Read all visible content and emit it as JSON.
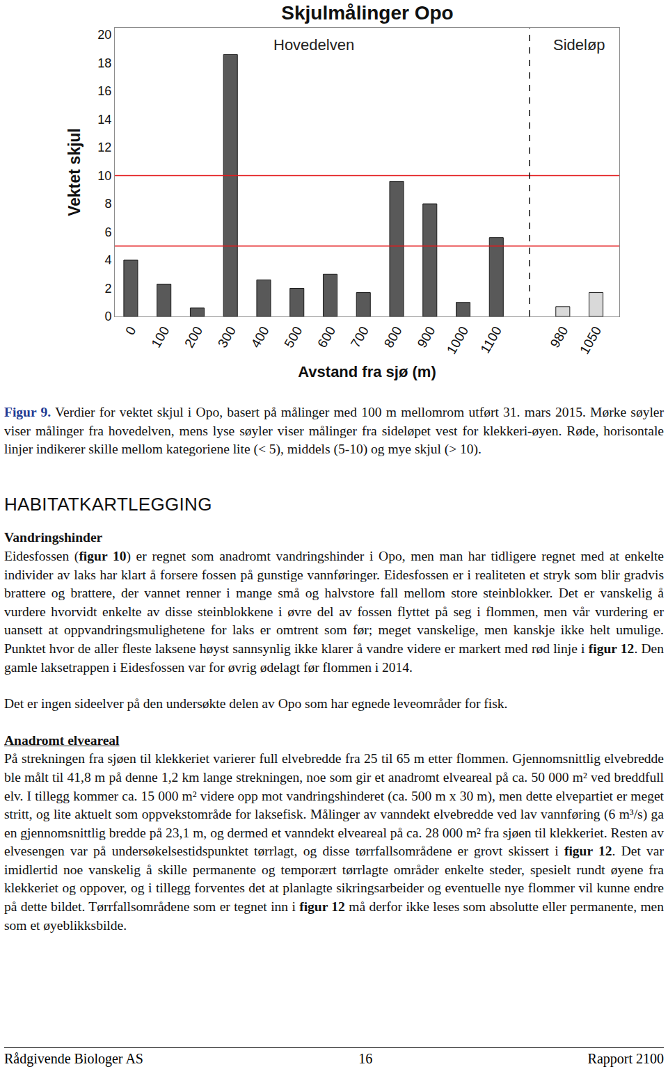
{
  "chart_data": {
    "type": "bar",
    "title": "Skjulmålinger Opo",
    "x_label": "Avstand fra sjø (m)",
    "y_label": "Vektet skjul",
    "categories": [
      "0",
      "100",
      "200",
      "300",
      "400",
      "500",
      "600",
      "700",
      "800",
      "900",
      "1000",
      "1100",
      null,
      "980",
      "1050"
    ],
    "values": [
      4.0,
      2.3,
      0.6,
      18.6,
      2.6,
      2.0,
      3.0,
      1.7,
      9.6,
      8.0,
      1.0,
      5.6,
      null,
      0.7,
      1.7
    ],
    "colors": [
      "#595959",
      "#595959",
      "#595959",
      "#595959",
      "#595959",
      "#595959",
      "#595959",
      "#595959",
      "#595959",
      "#595959",
      "#595959",
      "#595959",
      null,
      "#d9d9d9",
      "#d9d9d9"
    ],
    "ylim": [
      0,
      20.5
    ],
    "yticks": [
      0,
      2,
      4,
      6,
      8,
      10,
      12,
      14,
      16,
      18,
      20
    ],
    "grid": false,
    "thresholds": [
      5,
      10
    ],
    "section_labels": [
      "Hovedelven",
      "Sideløp"
    ]
  },
  "document": {
    "caption": {
      "label": "Figur 9.",
      "text": " Verdier for vektet skjul i Opo, basert på målinger med 100 m mellomrom utført 31. mars 2015. Mørke søyler viser målinger fra hovedelven, mens lyse søyler viser målinger fra sideløpet vest for klekkeri-øyen. Røde, horisontale linjer indikerer skille mellom kategoriene lite (< 5), middels (5-10) og mye skjul (> 10)."
    },
    "heading": "HABITATKARTLEGGING",
    "sections": [
      {
        "title": "Vandringshinder",
        "underline": false,
        "paragraphs": [
          [
            {
              "text": "Eidesfossen ("
            },
            {
              "text": "figur 10",
              "bold": true
            },
            {
              "text": ") er regnet som anadromt vandringshinder i Opo, men man har tidligere regnet med at enkelte individer av laks har klart å forsere fossen på gunstige vannføringer. Eidesfossen er i realiteten et stryk som blir gradvis brattere og brattere, der vannet renner i mange små og halvstore fall mellom store steinblokker. Det er vanskelig å vurdere hvorvidt enkelte av disse steinblokkene i øvre del av fossen flyttet på seg i flommen, men vår vurdering er uansett at oppvandringsmulighetene for laks er omtrent som før; meget vanskelige, men kanskje ikke helt umulige. Punktet hvor de aller fleste laksene høyst sannsynlig ikke klarer å vandre videre er markert med rød linje i "
            },
            {
              "text": "figur 12",
              "bold": true
            },
            {
              "text": ". Den gamle laksetrappen i Eidesfossen var for øvrig ødelagt før flommen i 2014."
            }
          ],
          [
            {
              "text": "Det er ingen sideelver på den undersøkte delen av Opo som har egnede leveområder for fisk."
            }
          ]
        ]
      },
      {
        "title": "Anadromt elveareal",
        "underline": true,
        "paragraphs": [
          [
            {
              "text": "På strekningen fra sjøen til klekkeriet varierer full elvebredde fra 25 til 65 m etter flommen. Gjennomsnittlig elvebredde ble målt til 41,8 m på denne 1,2 km lange strekningen, noe som gir et anadromt elveareal på ca. 50 000 m² ved breddfull elv. I tillegg kommer ca. 15 000 m² videre opp mot vandringshinderet (ca. 500 m x 30 m), men dette elvepartiet er meget stritt, og lite aktuelt som oppvekstområde for laksefisk. Målinger av vanndekt elvebredde ved lav vannføring (6 m³/s) ga en gjennomsnittlig bredde på 23,1 m, og dermed et vanndekt elveareal på ca. 28 000 m² fra sjøen til klekkeriet. Resten av elvesengen var på undersøkelsestidspunktet tørrlagt, og disse tørrfallsområdene er grovt skissert i "
            },
            {
              "text": "figur 12",
              "bold": true
            },
            {
              "text": ". Det var imidlertid noe vanskelig å skille permanente og temporært tørrlagte områder enkelte steder, spesielt rundt øyene fra klekkeriet og oppover, og i tillegg forventes det at planlagte sikringsarbeider og eventuelle nye flommer vil kunne endre på dette bildet. Tørrfallsområdene som er tegnet inn i "
            },
            {
              "text": "figur 12",
              "bold": true
            },
            {
              "text": " må derfor ikke leses som absolutte eller permanente, men som et øyeblikksbilde."
            }
          ]
        ]
      }
    ],
    "footer": {
      "left": "Rådgivende Biologer AS",
      "center": "16",
      "right": "Rapport 2100"
    }
  }
}
